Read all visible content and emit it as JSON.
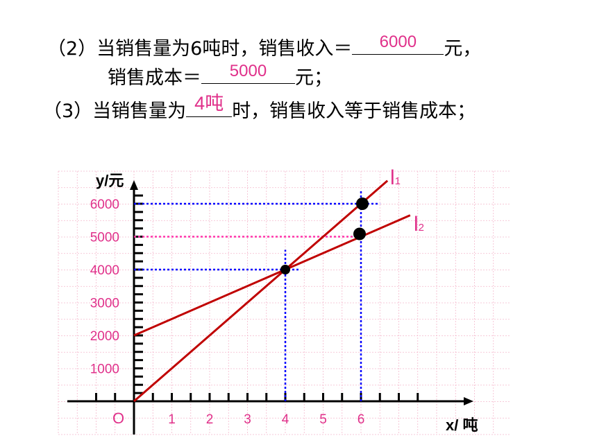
{
  "questions": {
    "q2_prefix": "（2）当销售量为6吨时，销售收入＝",
    "q2_answer1": "6000",
    "q2_unit1": "元，",
    "q2_line2_prefix": "销售成本＝",
    "q2_answer2": "5000",
    "q2_unit2": "元；",
    "q3_prefix": "（3）当销售量为",
    "q3_answer": "4吨",
    "q3_suffix": "时，销售收入等于销售成本；"
  },
  "colors": {
    "line": "#c00000",
    "tick_label": "#e0308a",
    "blue_guide": "#0000ff",
    "pink_guide": "#ff33aa",
    "grid": "#f4b8cc",
    "axis": "#000000"
  },
  "chart_data": {
    "type": "line",
    "title": "",
    "xlabel": "x/ 吨",
    "ylabel": "y/元",
    "origin_label": "O",
    "xlim": [
      -1.7,
      8.6
    ],
    "ylim": [
      -500,
      6600
    ],
    "x_tick_labels": [
      "1",
      "2",
      "3",
      "4",
      "5",
      "6"
    ],
    "x_tick_values": [
      1,
      2,
      3,
      4,
      5,
      6
    ],
    "y_tick_labels": [
      "1000",
      "2000",
      "3000",
      "4000",
      "5000",
      "6000"
    ],
    "y_tick_values": [
      1000,
      2000,
      3000,
      4000,
      5000,
      6000
    ],
    "grid": true,
    "series": [
      {
        "name": "l1",
        "label_main": "l",
        "label_sub": "1",
        "x": [
          0,
          6.7
        ],
        "y": [
          0,
          6700
        ]
      },
      {
        "name": "l2",
        "label_main": "l",
        "label_sub": "2",
        "x": [
          0,
          7.3
        ],
        "y": [
          2000,
          5650
        ]
      }
    ],
    "points": [
      {
        "x": 4,
        "y": 4000,
        "size": "small"
      },
      {
        "x": 6,
        "y": 6000,
        "size": "large"
      },
      {
        "x": 6,
        "y": 5000,
        "size": "large"
      }
    ],
    "guides": [
      {
        "axis": "h",
        "y": 6000,
        "x_from": 0,
        "x_to": 6.5,
        "color": "blue"
      },
      {
        "axis": "h",
        "y": 5000,
        "x_from": 0,
        "x_to": 6,
        "color": "pink"
      },
      {
        "axis": "h",
        "y": 4000,
        "x_from": 0,
        "x_to": 4.4,
        "color": "blue"
      },
      {
        "axis": "v",
        "x": 4,
        "y_from": 0,
        "y_to": 4600,
        "color": "blue"
      },
      {
        "axis": "v",
        "x": 6,
        "y_from": 0,
        "y_to": 6400,
        "color": "blue"
      }
    ]
  }
}
